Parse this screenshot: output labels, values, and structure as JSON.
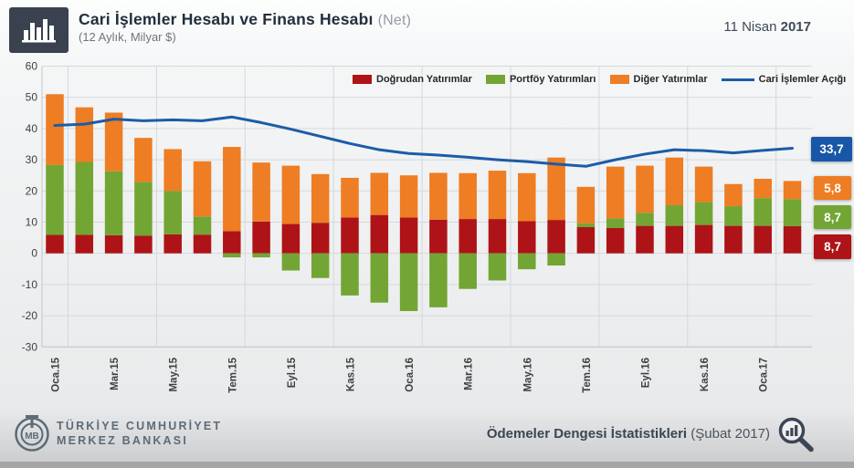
{
  "header": {
    "title": "Cari İşlemler Hesabı ve Finans Hesabı",
    "title_suffix": "(Net)",
    "subtitle": "(12 Aylık, Milyar $)",
    "date_text": "11 Nisan",
    "date_year": "2017",
    "icon": "bar-chart-icon"
  },
  "chart_data": {
    "type": "bar",
    "subtype": "stacked bars with overlay line",
    "title": "Cari İşlemler Hesabı ve Finans Hesabı (Net)",
    "subtitle": "(12 Aylık, Milyar $)",
    "unit": "Milyar $",
    "grid": true,
    "legend_position": "top",
    "categories": [
      "Oca.15",
      "Şub.15",
      "Mar.15",
      "Nis.15",
      "May.15",
      "Haz.15",
      "Tem.15",
      "Ağu.15",
      "Eyl.15",
      "Eki.15",
      "Kas.15",
      "Ara.15",
      "Oca.16",
      "Şub.16",
      "Mar.16",
      "Nis.16",
      "May.16",
      "Haz.16",
      "Tem.16",
      "Ağu.16",
      "Eyl.16",
      "Eki.16",
      "Kas.16",
      "Ara.16",
      "Oca.17",
      "Şub.17"
    ],
    "x_tick_labels": [
      "Oca.15",
      "Mar.15",
      "May.15",
      "Tem.15",
      "Eyl.15",
      "Kas.15",
      "Oca.16",
      "Mar.16",
      "May.16",
      "Tem.16",
      "Eyl.16",
      "Kas.16",
      "Oca.17"
    ],
    "y_axis": {
      "min": -30,
      "max": 60,
      "step": 10,
      "ticks": [
        60,
        50,
        40,
        30,
        20,
        10,
        0,
        -10,
        -20,
        -30
      ]
    },
    "series": [
      {
        "name": "Doğrudan  Yatırımlar",
        "type": "bar",
        "color": "#AE1317",
        "values": [
          5.9,
          5.9,
          5.8,
          5.7,
          6.1,
          6.0,
          7.1,
          10.2,
          9.4,
          9.8,
          11.5,
          12.3,
          11.5,
          10.8,
          11.0,
          11.0,
          10.3,
          10.7,
          8.4,
          8.1,
          8.8,
          8.8,
          9.1,
          8.8,
          8.8,
          8.7
        ]
      },
      {
        "name": "Portföy Yatırımları",
        "type": "bar",
        "color": "#72A533",
        "values": [
          22.4,
          23.4,
          20.5,
          17.2,
          13.9,
          5.8,
          -1.3,
          -1.3,
          -5.5,
          -7.9,
          -13.5,
          -15.8,
          -18.5,
          -17.3,
          -11.4,
          -8.7,
          -5.1,
          -3.9,
          1.2,
          3.1,
          4.2,
          6.6,
          7.3,
          6.3,
          8.9,
          8.7
        ]
      },
      {
        "name": "Diğer Yatırımlar",
        "type": "bar",
        "color": "#EE7D23",
        "values": [
          22.7,
          17.5,
          18.8,
          14.1,
          13.4,
          17.7,
          27.0,
          18.9,
          18.7,
          15.6,
          12.7,
          13.5,
          13.5,
          15.0,
          14.7,
          15.5,
          15.4,
          20.0,
          11.7,
          16.6,
          15.1,
          15.3,
          11.4,
          7.1,
          6.2,
          5.8
        ]
      },
      {
        "name": "Cari İşlemler Açığı",
        "type": "line",
        "color": "#1B5CA8",
        "values": [
          41.0,
          41.4,
          43.0,
          42.5,
          42.8,
          42.5,
          43.7,
          41.9,
          39.8,
          37.5,
          35.2,
          33.2,
          32.0,
          31.5,
          30.8,
          30.0,
          29.4,
          28.6,
          27.9,
          30.0,
          31.8,
          33.2,
          32.9,
          32.2,
          33.0,
          33.7
        ]
      }
    ],
    "end_labels": [
      {
        "series": "Cari İşlemler Açığı",
        "value": "33,7",
        "color": "#1857A8"
      },
      {
        "series": "Diğer Yatırımlar",
        "value": "5,8",
        "color": "#EE7D23"
      },
      {
        "series": "Portföy Yatırımları",
        "value": "8,7",
        "color": "#72A533"
      },
      {
        "series": "Doğrudan Yatırımlar",
        "value": "8,7",
        "color": "#AE1317"
      }
    ]
  },
  "footer": {
    "bank_line1": "TÜRKİYE CUMHURİYET",
    "bank_line2": "MERKEZ BANKASI",
    "release_bold": "Ödemeler Dengesi İstatistikleri",
    "release_paren": "(Şubat 2017)",
    "logo": "tcmb-logo",
    "right_icon": "magnifier-chart-icon"
  }
}
